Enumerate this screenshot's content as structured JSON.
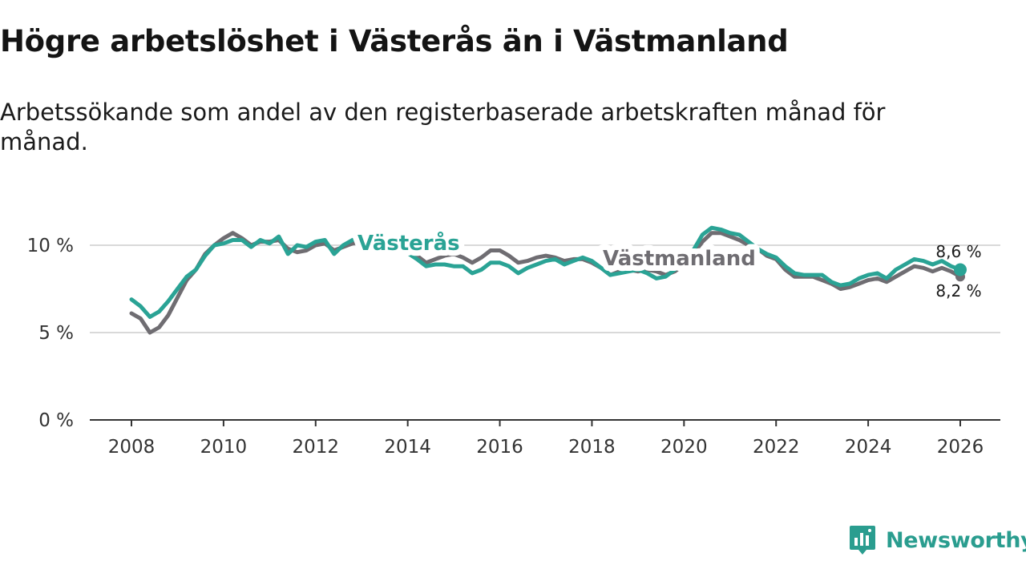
{
  "title": "Högre arbetslöshet i Västerås än i Västmanland",
  "subtitle": "Arbetssökande som andel av den registerbaserade arbetskraften månad för månad.",
  "brand": {
    "name": "Newsworthy",
    "color": "#2a9d8f"
  },
  "chart_data": {
    "type": "line",
    "x_unit": "year",
    "xlim": [
      2008,
      2026
    ],
    "ylim": [
      0,
      10
    ],
    "x_ticks": [
      2008,
      2010,
      2012,
      2014,
      2016,
      2018,
      2020,
      2022,
      2024,
      2026
    ],
    "x_tick_labels": [
      "2008",
      "2010",
      "2012",
      "2014",
      "2016",
      "2018",
      "2020",
      "2022",
      "2024",
      "2026"
    ],
    "y_ticks": [
      0,
      5,
      10
    ],
    "y_tick_labels": [
      "0 %",
      "5 %",
      "10 %"
    ],
    "grid": true,
    "series": [
      {
        "name": "Västmanland",
        "color": "#6f6d72",
        "end_label": "8,2 %",
        "points": [
          [
            2008.0,
            6.1
          ],
          [
            2008.2,
            5.8
          ],
          [
            2008.4,
            5.0
          ],
          [
            2008.6,
            5.3
          ],
          [
            2008.8,
            6.0
          ],
          [
            2009.0,
            7.0
          ],
          [
            2009.2,
            8.0
          ],
          [
            2009.4,
            8.6
          ],
          [
            2009.6,
            9.5
          ],
          [
            2009.8,
            10.0
          ],
          [
            2010.0,
            10.4
          ],
          [
            2010.2,
            10.7
          ],
          [
            2010.4,
            10.4
          ],
          [
            2010.6,
            10.0
          ],
          [
            2010.8,
            10.2
          ],
          [
            2011.0,
            10.2
          ],
          [
            2011.2,
            10.3
          ],
          [
            2011.4,
            9.8
          ],
          [
            2011.6,
            9.6
          ],
          [
            2011.8,
            9.7
          ],
          [
            2012.0,
            10.0
          ],
          [
            2012.2,
            10.1
          ],
          [
            2012.4,
            9.7
          ],
          [
            2012.6,
            9.9
          ],
          [
            2012.8,
            10.1
          ],
          [
            2013.0,
            10.2
          ],
          [
            2013.4,
            10.2
          ],
          [
            2013.8,
            9.8
          ],
          [
            2014.2,
            9.4
          ],
          [
            2014.4,
            9.0
          ],
          [
            2014.6,
            9.2
          ],
          [
            2014.8,
            9.4
          ],
          [
            2015.0,
            9.5
          ],
          [
            2015.2,
            9.3
          ],
          [
            2015.4,
            9.0
          ],
          [
            2015.6,
            9.3
          ],
          [
            2015.8,
            9.7
          ],
          [
            2016.0,
            9.7
          ],
          [
            2016.2,
            9.4
          ],
          [
            2016.4,
            9.0
          ],
          [
            2016.6,
            9.1
          ],
          [
            2016.8,
            9.3
          ],
          [
            2017.0,
            9.4
          ],
          [
            2017.2,
            9.3
          ],
          [
            2017.4,
            9.1
          ],
          [
            2017.6,
            9.2
          ],
          [
            2017.8,
            9.2
          ],
          [
            2018.0,
            9.0
          ],
          [
            2018.2,
            8.7
          ],
          [
            2018.4,
            8.3
          ],
          [
            2018.6,
            8.5
          ],
          [
            2018.8,
            8.6
          ],
          [
            2019.0,
            8.5
          ],
          [
            2019.2,
            8.6
          ],
          [
            2019.4,
            8.5
          ],
          [
            2019.6,
            8.3
          ],
          [
            2019.8,
            8.5
          ],
          [
            2020.0,
            8.9
          ],
          [
            2020.2,
            9.5
          ],
          [
            2020.4,
            10.2
          ],
          [
            2020.6,
            10.7
          ],
          [
            2020.8,
            10.7
          ],
          [
            2021.0,
            10.5
          ],
          [
            2021.2,
            10.3
          ],
          [
            2021.4,
            10.0
          ],
          [
            2021.6,
            9.8
          ],
          [
            2021.8,
            9.4
          ],
          [
            2022.0,
            9.2
          ],
          [
            2022.2,
            8.6
          ],
          [
            2022.4,
            8.2
          ],
          [
            2022.6,
            8.2
          ],
          [
            2022.8,
            8.2
          ],
          [
            2023.0,
            8.0
          ],
          [
            2023.2,
            7.8
          ],
          [
            2023.4,
            7.5
          ],
          [
            2023.6,
            7.6
          ],
          [
            2023.8,
            7.8
          ],
          [
            2024.0,
            8.0
          ],
          [
            2024.2,
            8.1
          ],
          [
            2024.4,
            7.9
          ],
          [
            2024.6,
            8.2
          ],
          [
            2024.8,
            8.5
          ],
          [
            2025.0,
            8.8
          ],
          [
            2025.2,
            8.7
          ],
          [
            2025.4,
            8.5
          ],
          [
            2025.6,
            8.7
          ],
          [
            2025.8,
            8.5
          ],
          [
            2026.0,
            8.2
          ]
        ]
      },
      {
        "name": "Västerås",
        "color": "#2aa395",
        "end_label": "8,6 %",
        "points": [
          [
            2008.0,
            6.9
          ],
          [
            2008.2,
            6.5
          ],
          [
            2008.4,
            5.9
          ],
          [
            2008.6,
            6.2
          ],
          [
            2008.8,
            6.8
          ],
          [
            2009.0,
            7.5
          ],
          [
            2009.2,
            8.2
          ],
          [
            2009.4,
            8.6
          ],
          [
            2009.6,
            9.4
          ],
          [
            2009.8,
            10.0
          ],
          [
            2010.0,
            10.1
          ],
          [
            2010.2,
            10.3
          ],
          [
            2010.4,
            10.3
          ],
          [
            2010.6,
            9.9
          ],
          [
            2010.8,
            10.3
          ],
          [
            2011.0,
            10.1
          ],
          [
            2011.2,
            10.5
          ],
          [
            2011.4,
            9.5
          ],
          [
            2011.6,
            10.0
          ],
          [
            2011.8,
            9.9
          ],
          [
            2012.0,
            10.2
          ],
          [
            2012.2,
            10.3
          ],
          [
            2012.4,
            9.5
          ],
          [
            2012.6,
            10.0
          ],
          [
            2012.8,
            10.3
          ],
          [
            2013.0,
            10.4
          ],
          [
            2013.4,
            10.2
          ],
          [
            2013.8,
            9.9
          ],
          [
            2014.2,
            9.2
          ],
          [
            2014.4,
            8.8
          ],
          [
            2014.6,
            8.9
          ],
          [
            2014.8,
            8.9
          ],
          [
            2015.0,
            8.8
          ],
          [
            2015.2,
            8.8
          ],
          [
            2015.4,
            8.4
          ],
          [
            2015.6,
            8.6
          ],
          [
            2015.8,
            9.0
          ],
          [
            2016.0,
            9.0
          ],
          [
            2016.2,
            8.8
          ],
          [
            2016.4,
            8.4
          ],
          [
            2016.6,
            8.7
          ],
          [
            2016.8,
            8.9
          ],
          [
            2017.0,
            9.1
          ],
          [
            2017.2,
            9.2
          ],
          [
            2017.4,
            8.9
          ],
          [
            2017.6,
            9.1
          ],
          [
            2017.8,
            9.3
          ],
          [
            2018.0,
            9.1
          ],
          [
            2018.2,
            8.7
          ],
          [
            2018.4,
            8.3
          ],
          [
            2018.6,
            8.4
          ],
          [
            2018.8,
            8.5
          ],
          [
            2019.0,
            8.6
          ],
          [
            2019.2,
            8.4
          ],
          [
            2019.4,
            8.1
          ],
          [
            2019.6,
            8.2
          ],
          [
            2019.8,
            8.6
          ],
          [
            2020.0,
            9.0
          ],
          [
            2020.2,
            9.7
          ],
          [
            2020.4,
            10.6
          ],
          [
            2020.6,
            11.0
          ],
          [
            2020.8,
            10.9
          ],
          [
            2021.0,
            10.7
          ],
          [
            2021.2,
            10.6
          ],
          [
            2021.4,
            10.2
          ],
          [
            2021.6,
            9.8
          ],
          [
            2021.8,
            9.5
          ],
          [
            2022.0,
            9.3
          ],
          [
            2022.2,
            8.8
          ],
          [
            2022.4,
            8.4
          ],
          [
            2022.6,
            8.3
          ],
          [
            2022.8,
            8.3
          ],
          [
            2023.0,
            8.3
          ],
          [
            2023.2,
            7.9
          ],
          [
            2023.4,
            7.7
          ],
          [
            2023.6,
            7.8
          ],
          [
            2023.8,
            8.1
          ],
          [
            2024.0,
            8.3
          ],
          [
            2024.2,
            8.4
          ],
          [
            2024.4,
            8.1
          ],
          [
            2024.6,
            8.6
          ],
          [
            2024.8,
            8.9
          ],
          [
            2025.0,
            9.2
          ],
          [
            2025.2,
            9.1
          ],
          [
            2025.4,
            8.9
          ],
          [
            2025.6,
            9.1
          ],
          [
            2025.8,
            8.8
          ],
          [
            2026.0,
            8.6
          ]
        ]
      }
    ]
  }
}
